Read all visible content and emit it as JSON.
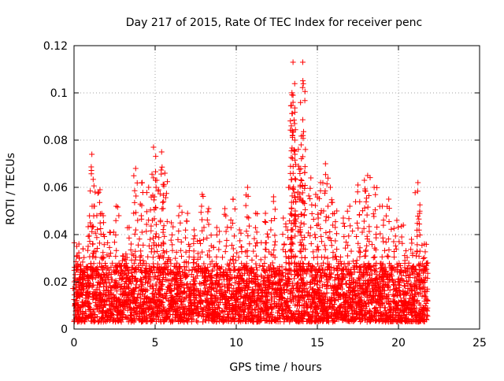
{
  "chart_data": {
    "type": "scatter",
    "title": "Day 217 of 2015, Rate Of TEC Index for receiver penc",
    "xlabel": "GPS time / hours",
    "ylabel": "ROTI / TECUs",
    "xlim": [
      0,
      25
    ],
    "ylim": [
      0,
      0.12
    ],
    "xticks": [
      0,
      5,
      10,
      15,
      20,
      25
    ],
    "yticks": [
      0,
      0.02,
      0.04,
      0.06,
      0.08,
      0.1,
      0.12
    ],
    "xtick_labels": [
      "0",
      "5",
      "10",
      "15",
      "20",
      "25"
    ],
    "ytick_labels": [
      "0",
      "0.02",
      "0.04",
      "0.06",
      "0.08",
      "0.1",
      "0.12"
    ],
    "grid": true,
    "marker": "+",
    "color": "#ff0000",
    "series": [
      {
        "points": [
          [
            0.1,
            0.012
          ],
          [
            0.2,
            0.031
          ],
          [
            0.3,
            0.036
          ],
          [
            0.5,
            0.022
          ],
          [
            0.8,
            0.018
          ],
          [
            1.0,
            0.045
          ],
          [
            1.1,
            0.074
          ],
          [
            1.3,
            0.058
          ],
          [
            1.6,
            0.059
          ],
          [
            1.8,
            0.048
          ],
          [
            2.2,
            0.041
          ],
          [
            2.6,
            0.052
          ],
          [
            3.0,
            0.031
          ],
          [
            3.4,
            0.043
          ],
          [
            3.8,
            0.068
          ],
          [
            4.2,
            0.062
          ],
          [
            4.6,
            0.06
          ],
          [
            4.9,
            0.077
          ],
          [
            5.1,
            0.063
          ],
          [
            5.4,
            0.075
          ],
          [
            5.6,
            0.066
          ],
          [
            6.0,
            0.045
          ],
          [
            6.5,
            0.052
          ],
          [
            7.0,
            0.049
          ],
          [
            7.4,
            0.042
          ],
          [
            7.9,
            0.057
          ],
          [
            8.3,
            0.051
          ],
          [
            8.8,
            0.043
          ],
          [
            9.3,
            0.051
          ],
          [
            9.8,
            0.055
          ],
          [
            10.2,
            0.042
          ],
          [
            10.7,
            0.06
          ],
          [
            11.2,
            0.049
          ],
          [
            11.8,
            0.049
          ],
          [
            12.3,
            0.056
          ],
          [
            12.9,
            0.047
          ],
          [
            13.3,
            0.06
          ],
          [
            13.5,
            0.113
          ],
          [
            13.5,
            0.099
          ],
          [
            13.5,
            0.096
          ],
          [
            13.8,
            0.058
          ],
          [
            14.0,
            0.078
          ],
          [
            14.1,
            0.113
          ],
          [
            14.1,
            0.073
          ],
          [
            14.6,
            0.064
          ],
          [
            14.9,
            0.057
          ],
          [
            15.2,
            0.062
          ],
          [
            15.5,
            0.07
          ],
          [
            15.8,
            0.06
          ],
          [
            16.2,
            0.05
          ],
          [
            16.6,
            0.047
          ],
          [
            17.0,
            0.052
          ],
          [
            17.5,
            0.061
          ],
          [
            17.9,
            0.063
          ],
          [
            18.1,
            0.065
          ],
          [
            18.5,
            0.06
          ],
          [
            19.0,
            0.052
          ],
          [
            19.4,
            0.055
          ],
          [
            19.9,
            0.046
          ],
          [
            20.3,
            0.044
          ],
          [
            20.8,
            0.038
          ],
          [
            21.2,
            0.062
          ],
          [
            21.3,
            0.049
          ],
          [
            21.6,
            0.036
          ],
          [
            21.8,
            0.028
          ]
        ]
      }
    ],
    "dense_band": {
      "x_range": [
        0,
        21.8
      ],
      "y_low": 0.003,
      "y_high": 0.027,
      "count": 4200
    }
  }
}
